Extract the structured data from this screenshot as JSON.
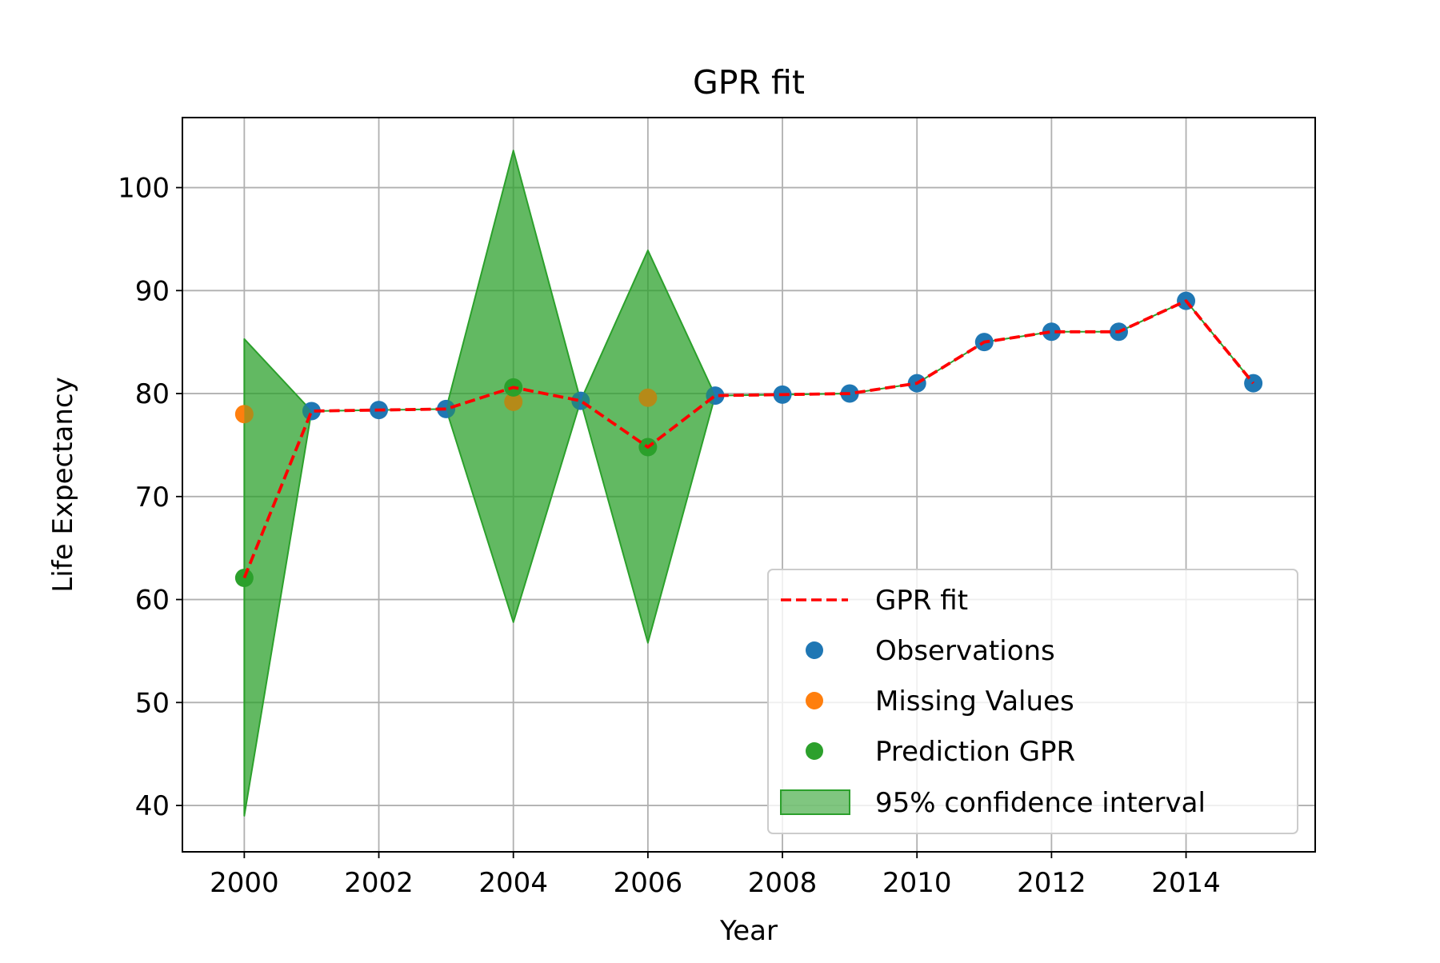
{
  "chart_data": {
    "type": "line",
    "title": "GPR fit",
    "xlabel": "Year",
    "ylabel": "Life Expectancy",
    "xlim": [
      1999.08,
      2015.92
    ],
    "ylim": [
      35.5,
      106.8
    ],
    "xticks": [
      2000,
      2002,
      2004,
      2006,
      2008,
      2010,
      2012,
      2014
    ],
    "yticks": [
      40,
      50,
      60,
      70,
      80,
      90,
      100
    ],
    "grid": true,
    "legend_position": "lower-right",
    "colors": {
      "fit": "#ff0000",
      "observations": "#1f77b4",
      "missing": "#ff7f0e",
      "prediction": "#2ca02c",
      "band_fill": "#2ca02c",
      "band_edge": "#2ca02c"
    },
    "gpr_fit": {
      "name": "GPR fit",
      "x": [
        2000,
        2001,
        2002,
        2003,
        2004,
        2005,
        2006,
        2007,
        2008,
        2009,
        2010,
        2011,
        2012,
        2013,
        2014,
        2015
      ],
      "y": [
        62.1,
        78.3,
        78.4,
        78.5,
        80.6,
        79.3,
        74.8,
        79.8,
        79.9,
        80.0,
        81.0,
        85.0,
        86.0,
        86.0,
        89.0,
        81.0
      ]
    },
    "observations": {
      "name": "Observations",
      "x": [
        2001,
        2002,
        2003,
        2005,
        2007,
        2008,
        2009,
        2010,
        2011,
        2012,
        2013,
        2014,
        2015
      ],
      "y": [
        78.3,
        78.4,
        78.5,
        79.3,
        79.8,
        79.9,
        80.0,
        81.0,
        85.0,
        86.0,
        86.0,
        89.0,
        81.0
      ]
    },
    "missing_values": {
      "name": "Missing Values",
      "x": [
        2000,
        2004,
        2006
      ],
      "y": [
        78.0,
        79.2,
        79.6
      ]
    },
    "prediction": {
      "name": "Prediction GPR",
      "x": [
        2000,
        2004,
        2006
      ],
      "y": [
        62.1,
        80.6,
        74.8
      ]
    },
    "confidence_interval": {
      "name": "95% confidence interval",
      "x": [
        2000,
        2001,
        2002,
        2003,
        2004,
        2005,
        2006,
        2007,
        2008,
        2009,
        2010,
        2011,
        2012,
        2013,
        2014,
        2015
      ],
      "lower": [
        39.0,
        78.3,
        78.4,
        78.5,
        57.8,
        79.3,
        55.8,
        79.8,
        79.9,
        80.0,
        81.0,
        85.0,
        86.0,
        86.0,
        89.0,
        81.0
      ],
      "upper": [
        85.3,
        78.3,
        78.4,
        78.5,
        103.6,
        79.3,
        93.9,
        79.8,
        79.9,
        80.0,
        81.0,
        85.0,
        86.0,
        86.0,
        89.0,
        81.0
      ]
    },
    "legend": [
      "GPR fit",
      "Observations",
      "Missing Values",
      "Prediction GPR",
      "95% confidence interval"
    ]
  }
}
